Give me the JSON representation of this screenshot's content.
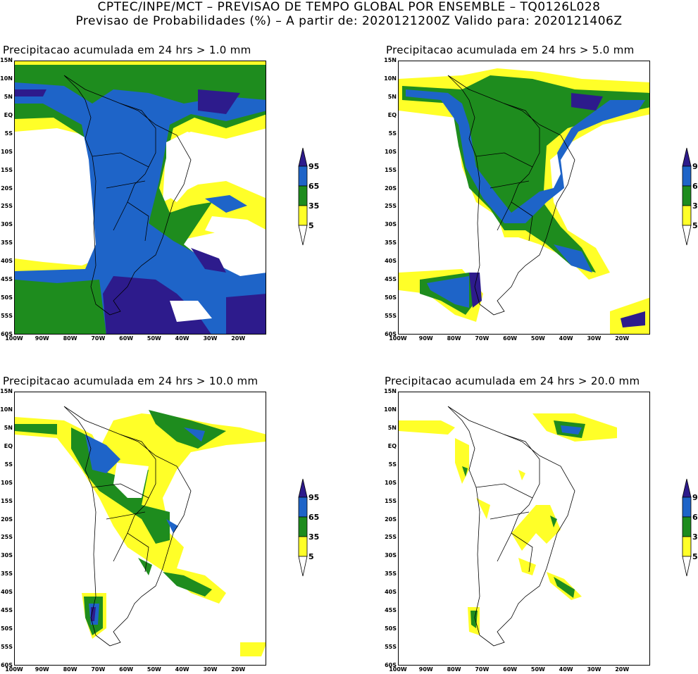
{
  "header": {
    "line1": "CPTEC/INPE/MCT – PREVISAO DE TEMPO GLOBAL POR ENSEMBLE – TQ0126L028",
    "line2": "Previsao de Probabilidades (%) –  A partir de: 2020121200Z  Valido para: 2020121406Z"
  },
  "axes": {
    "lat_labels": [
      "15N",
      "10N",
      "5N",
      "EQ",
      "5S",
      "10S",
      "15S",
      "20S",
      "25S",
      "30S",
      "35S",
      "40S",
      "45S",
      "50S",
      "55S",
      "60S"
    ],
    "lon_labels": [
      "100W",
      "90W",
      "80W",
      "70W",
      "60W",
      "50W",
      "40W",
      "30W",
      "20W"
    ]
  },
  "colorbar": {
    "levels": [
      "95",
      "65",
      "35",
      "5"
    ],
    "colors": {
      "top": "#2d1b8c",
      "high": "#1e64c8",
      "mid": "#1e8c1e",
      "low": "#ffff28",
      "bottom": "#ffffff"
    }
  },
  "panels": [
    {
      "title": "Precipitacao acumulada em 24 hrs > 1.0 mm"
    },
    {
      "title": "Precipitacao acumulada em 24 hrs > 5.0 mm"
    },
    {
      "title": "Precipitacao acumulada em 24 hrs > 10.0 mm"
    },
    {
      "title": "Precipitacao acumulada em 24 hrs > 20.0 mm"
    }
  ]
}
